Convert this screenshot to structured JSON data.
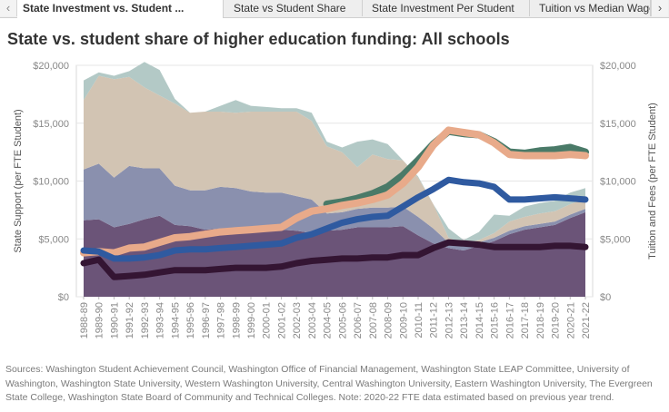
{
  "tabs": {
    "prev_label": "‹",
    "next_label": "›",
    "items": [
      {
        "label": "State Investment vs. Student ..."
      },
      {
        "label": "State vs Student Share"
      },
      {
        "label": "State Investment Per Student"
      },
      {
        "label": "Tuition vs Median Wage"
      }
    ]
  },
  "title": "State vs. student share of higher education funding: All schools",
  "source": "Sources: Washington Student Achievement Council, Washington Office of Financial Management, Washington State LEAP Committee, University of Washington, Washington State University, Western Washington University, Central Washington University, Eastern Washington University, The Evergreen State College, Washington State Board of Community and Technical Colleges. Note: 2020-22 FTE data estimated based on previous year trend.",
  "chart_data": {
    "type": "area",
    "title": "State vs. student share of higher education funding: All schools",
    "ylabel": "State Support (per FTE Student)",
    "y2label": "Tuition and Fees (per FTE Student)",
    "ylim": [
      0,
      20000
    ],
    "y2lim": [
      0,
      20000
    ],
    "yticks": [
      "$0",
      "$5,000",
      "$10,000",
      "$15,000",
      "$20,000"
    ],
    "x": [
      "1988-89",
      "1989-90",
      "1990-91",
      "1991-92",
      "1992-93",
      "1993-94",
      "1994-95",
      "1995-96",
      "1996-97",
      "1997-98",
      "1998-99",
      "1999-00",
      "2000-01",
      "2001-02",
      "2002-03",
      "2003-04",
      "2004-05",
      "2005-06",
      "2006-07",
      "2007-08",
      "2008-09",
      "2009-10",
      "2010-11",
      "2011-12",
      "2012-13",
      "2013-14",
      "2014-15",
      "2015-16",
      "2016-17",
      "2017-18",
      "2018-19",
      "2019-20",
      "2020-21",
      "2021-22"
    ],
    "stacked_area_series": [
      {
        "color": "#6b5478",
        "values": [
          6600,
          6700,
          6000,
          6300,
          6700,
          7000,
          6200,
          6100,
          5800,
          5900,
          5900,
          5800,
          5800,
          5800,
          5700,
          5500,
          5700,
          5800,
          6000,
          6000,
          6000,
          6100,
          5300,
          4600,
          4200,
          4000,
          4400,
          4800,
          5400,
          5800,
          6000,
          6200,
          6800,
          7300
        ]
      },
      {
        "color": "#8a90ae",
        "values": [
          4400,
          4800,
          4300,
          5000,
          4400,
          4100,
          3400,
          3100,
          3400,
          3600,
          3500,
          3300,
          3200,
          3200,
          3000,
          2900,
          1500,
          1500,
          1600,
          1700,
          1700,
          1700,
          1600,
          1300,
          500,
          400,
          300,
          300,
          300,
          300,
          300,
          300,
          300,
          300
        ]
      },
      {
        "color": "#d2c4b3",
        "values": [
          6000,
          7600,
          8500,
          7700,
          7000,
          6300,
          7100,
          6700,
          6800,
          6500,
          6500,
          6900,
          7000,
          7000,
          7300,
          6800,
          5800,
          5200,
          3600,
          4600,
          4200,
          4000,
          3400,
          2100,
          400,
          200,
          200,
          400,
          800,
          800,
          900,
          900,
          900,
          900
        ]
      },
      {
        "color": "#b3c9c6",
        "values": [
          1700,
          300,
          300,
          500,
          2200,
          2200,
          400,
          0,
          0,
          500,
          1100,
          500,
          400,
          300,
          300,
          700,
          400,
          400,
          2200,
          1300,
          1300,
          0,
          100,
          0,
          800,
          300,
          700,
          1600,
          500,
          900,
          900,
          900,
          1000,
          900
        ]
      }
    ],
    "line_series": [
      {
        "color": "#4a7a68",
        "width": 8,
        "values": [
          null,
          null,
          null,
          null,
          null,
          null,
          null,
          null,
          null,
          null,
          null,
          null,
          null,
          null,
          null,
          null,
          8000,
          8200,
          8500,
          8900,
          9500,
          10500,
          11800,
          13200,
          14300,
          14100,
          14000,
          13400,
          12500,
          12400,
          12600,
          12700,
          12900,
          12500
        ]
      },
      {
        "color": "#e8aa8a",
        "width": 8,
        "values": [
          3800,
          3900,
          3800,
          4200,
          4300,
          4700,
          5100,
          5200,
          5400,
          5600,
          5700,
          5800,
          5900,
          6000,
          6800,
          7400,
          7600,
          7900,
          8100,
          8400,
          8800,
          9800,
          11200,
          13100,
          14400,
          14200,
          14000,
          13300,
          12300,
          12200,
          12200,
          12200,
          12300,
          12200
        ]
      },
      {
        "color": "#2f5aa0",
        "width": 7,
        "values": [
          4000,
          3900,
          3300,
          3300,
          3400,
          3600,
          4000,
          4100,
          4100,
          4200,
          4300,
          4400,
          4500,
          4600,
          5100,
          5400,
          5900,
          6400,
          6700,
          6900,
          7000,
          7800,
          8600,
          9300,
          10100,
          9900,
          9800,
          9500,
          8400,
          8400,
          8500,
          8600,
          8500,
          8400
        ]
      },
      {
        "color": "#341533",
        "width": 7,
        "values": [
          2900,
          3200,
          1700,
          1800,
          1900,
          2100,
          2300,
          2300,
          2300,
          2400,
          2500,
          2500,
          2500,
          2600,
          2900,
          3100,
          3200,
          3300,
          3300,
          3400,
          3400,
          3600,
          3600,
          4200,
          4700,
          4600,
          4500,
          4300,
          4300,
          4300,
          4300,
          4400,
          4400,
          4300
        ]
      }
    ]
  }
}
